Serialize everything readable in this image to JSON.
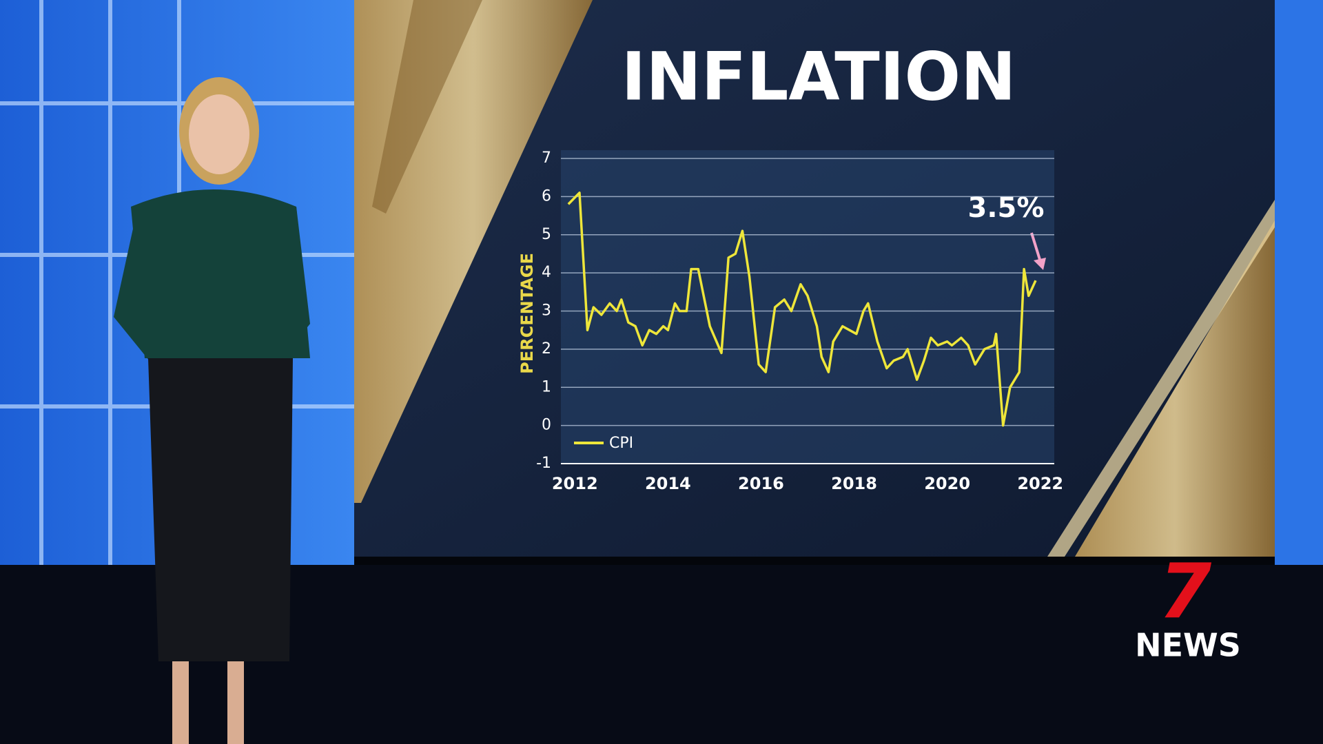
{
  "chart_data": {
    "type": "line",
    "title": "INFLATION",
    "y_label": "PERCENTAGE",
    "annotations": [
      {
        "text": "3.5%"
      }
    ],
    "x": [
      2011.86,
      2012.1,
      2012.27,
      2012.4,
      2012.57,
      2012.75,
      2012.9,
      2013.0,
      2013.15,
      2013.3,
      2013.45,
      2013.6,
      2013.75,
      2013.9,
      2014.0,
      2014.15,
      2014.25,
      2014.4,
      2014.5,
      2014.65,
      2014.9,
      2015.15,
      2015.3,
      2015.45,
      2015.6,
      2015.75,
      2015.95,
      2016.1,
      2016.3,
      2016.5,
      2016.65,
      2016.85,
      2017.0,
      2017.2,
      2017.3,
      2017.45,
      2017.55,
      2017.75,
      2017.9,
      2018.05,
      2018.2,
      2018.3,
      2018.5,
      2018.7,
      2018.85,
      2019.05,
      2019.15,
      2019.35,
      2019.5,
      2019.65,
      2019.8,
      2020.0,
      2020.1,
      2020.3,
      2020.45,
      2020.6,
      2020.8,
      2021.0,
      2021.05,
      2021.2,
      2021.35,
      2021.55,
      2021.65,
      2021.75,
      2021.9
    ],
    "series": [
      {
        "name": "CPI",
        "color": "#eee63a",
        "values": [
          5.8,
          6.1,
          2.5,
          3.1,
          2.9,
          3.2,
          3.0,
          3.3,
          2.7,
          2.6,
          2.1,
          2.5,
          2.4,
          2.6,
          2.5,
          3.2,
          3.0,
          3.0,
          4.1,
          4.1,
          2.6,
          1.9,
          4.4,
          4.5,
          5.1,
          3.9,
          1.6,
          1.4,
          3.1,
          3.3,
          3.0,
          3.7,
          3.4,
          2.6,
          1.8,
          1.4,
          2.2,
          2.6,
          2.5,
          2.4,
          3.0,
          3.2,
          2.2,
          1.5,
          1.7,
          1.8,
          2.0,
          1.2,
          1.7,
          2.3,
          2.1,
          2.2,
          2.1,
          2.3,
          2.1,
          1.6,
          2.0,
          2.1,
          2.4,
          0.0,
          1.0,
          1.4,
          4.1,
          3.4,
          3.8
        ]
      }
    ],
    "xlim": [
      2011.7,
      2022.3
    ],
    "xticks": [
      2012,
      2014,
      2016,
      2018,
      2020,
      2022
    ],
    "ylim": [
      -1,
      7
    ],
    "yticks": [
      -1,
      0,
      1,
      2,
      3,
      4,
      5,
      6,
      7
    ],
    "grid": true
  },
  "logo": {
    "mark": "7",
    "text": "NEWS"
  }
}
